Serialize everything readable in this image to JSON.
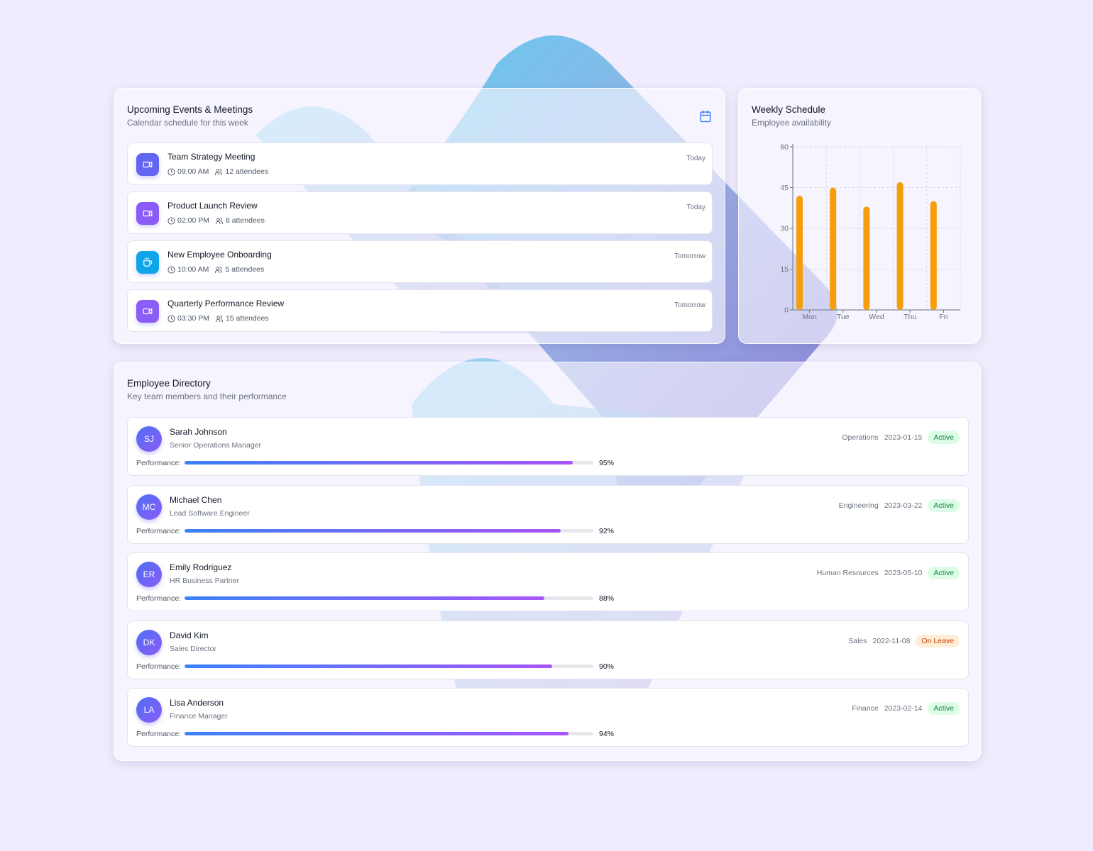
{
  "events_card": {
    "title": "Upcoming Events & Meetings",
    "subtitle": "Calendar schedule for this week",
    "icon": "calendar-icon",
    "events": [
      {
        "name": "Team Strategy Meeting",
        "time": "09:00 AM",
        "attendees": "12 attendees",
        "when": "Today",
        "icon": "video-icon",
        "icon_color": "#6366f1"
      },
      {
        "name": "Product Launch Review",
        "time": "02:00 PM",
        "attendees": "8 attendees",
        "when": "Today",
        "icon": "video-icon",
        "icon_color": "#8b5cf6"
      },
      {
        "name": "New Employee Onboarding",
        "time": "10:00 AM",
        "attendees": "5 attendees",
        "when": "Tomorrow",
        "icon": "coffee-icon",
        "icon_color": "#0ea5e9"
      },
      {
        "name": "Quarterly Performance Review",
        "time": "03:30 PM",
        "attendees": "15 attendees",
        "when": "Tomorrow",
        "icon": "video-icon",
        "icon_color": "#8b5cf6"
      }
    ]
  },
  "schedule_card": {
    "title": "Weekly Schedule",
    "subtitle": "Employee availability"
  },
  "chart_data": {
    "type": "bar",
    "categories": [
      "Mon",
      "Tue",
      "Wed",
      "Thu",
      "Fri"
    ],
    "values": [
      42,
      45,
      38,
      47,
      40
    ],
    "ylim": [
      0,
      60
    ],
    "yticks": [
      0,
      15,
      30,
      45,
      60
    ],
    "grid": true,
    "bar_color": "#f59e0b"
  },
  "directory_card": {
    "title": "Employee Directory",
    "subtitle": "Key team members and their performance",
    "performance_label": "Performance:",
    "employees": [
      {
        "initials": "SJ",
        "name": "Sarah Johnson",
        "role": "Senior Operations Manager",
        "department": "Operations",
        "date": "2023-01-15",
        "status": "Active",
        "performance": 95,
        "performance_text": "95%"
      },
      {
        "initials": "MC",
        "name": "Michael Chen",
        "role": "Lead Software Engineer",
        "department": "Engineering",
        "date": "2023-03-22",
        "status": "Active",
        "performance": 92,
        "performance_text": "92%"
      },
      {
        "initials": "ER",
        "name": "Emily Rodriguez",
        "role": "HR Business Partner",
        "department": "Human Resources",
        "date": "2023-05-10",
        "status": "Active",
        "performance": 88,
        "performance_text": "88%"
      },
      {
        "initials": "DK",
        "name": "David Kim",
        "role": "Sales Director",
        "department": "Sales",
        "date": "2022-11-08",
        "status": "On Leave",
        "performance": 90,
        "performance_text": "90%"
      },
      {
        "initials": "LA",
        "name": "Lisa Anderson",
        "role": "Finance Manager",
        "department": "Finance",
        "date": "2023-02-14",
        "status": "Active",
        "performance": 94,
        "performance_text": "94%"
      }
    ]
  },
  "colors": {
    "background": "#f0ecfd",
    "active_badge": "#15803d",
    "leave_badge": "#c2410c",
    "bar_start": "#3b82f6",
    "bar_end": "#a855f7"
  }
}
